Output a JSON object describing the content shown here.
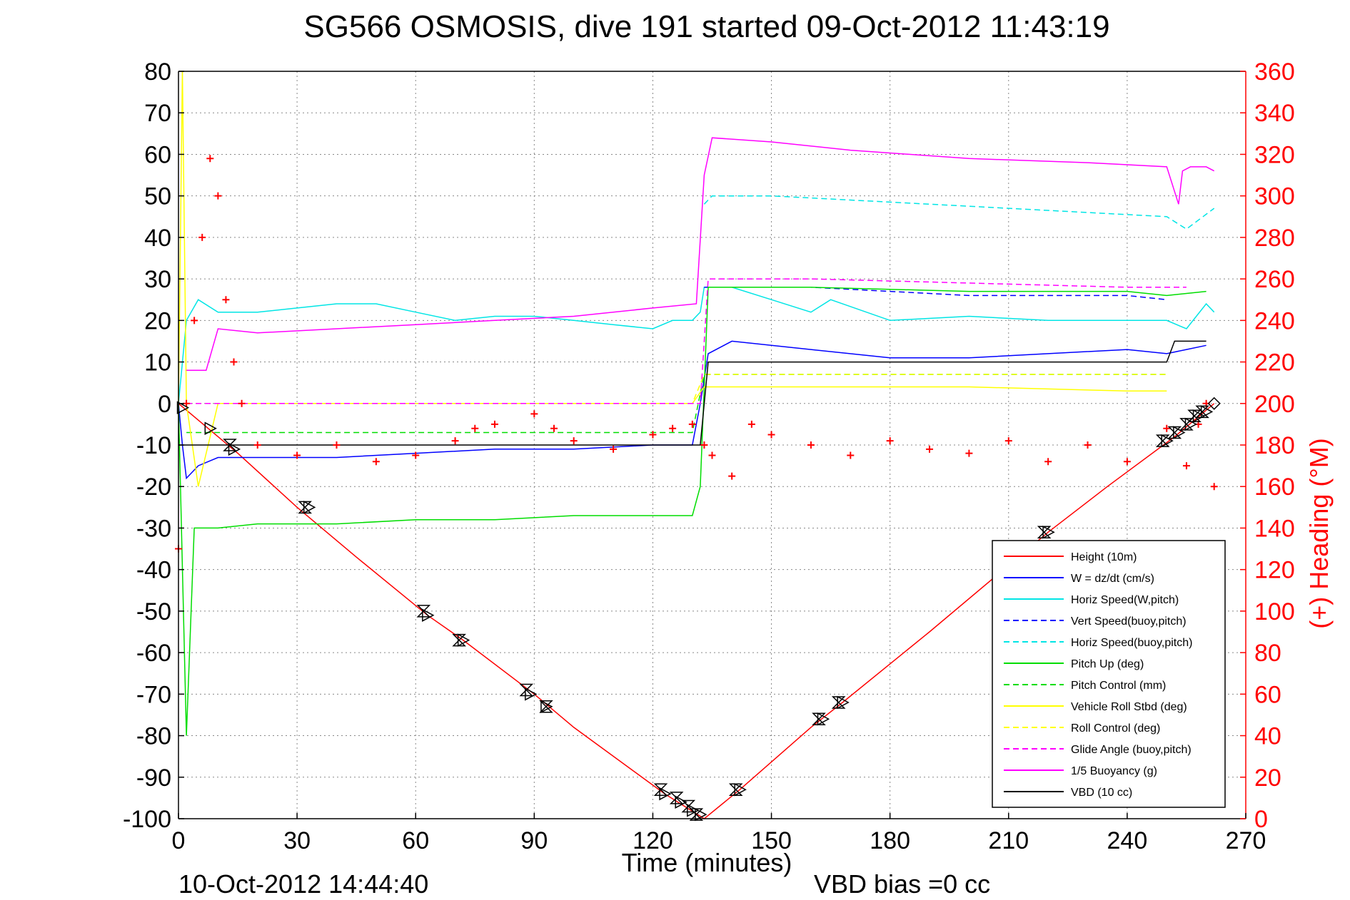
{
  "chart_data": {
    "type": "line",
    "title": "SG566 OSMOSIS, dive 191 started 09-Oct-2012 11:43:19",
    "xlabel": "Time (minutes)",
    "ylabel_right": "(+) Heading (°M)",
    "xlim": [
      0,
      270
    ],
    "ylim": [
      -100,
      80
    ],
    "ylim_right": [
      0,
      360
    ],
    "xticks": [
      0,
      30,
      60,
      90,
      120,
      150,
      180,
      210,
      240,
      270
    ],
    "yticks": [
      80,
      70,
      60,
      50,
      40,
      30,
      20,
      10,
      0,
      -10,
      -20,
      -30,
      -40,
      -50,
      -60,
      -70,
      -80,
      -90,
      -100
    ],
    "yticks_right": [
      360,
      340,
      320,
      300,
      280,
      260,
      240,
      220,
      200,
      180,
      160,
      140,
      120,
      100,
      80,
      60,
      40,
      20,
      0
    ],
    "grid": true,
    "legend_position": "bottom-right",
    "footer_left": "10-Oct-2012 14:44:40",
    "footer_right": "VBD bias =0 cc",
    "series": [
      {
        "name": "Height (10m)",
        "color": "#ff0000",
        "style": "solid",
        "x": [
          0,
          5,
          15,
          30,
          45,
          63,
          72,
          90,
          100,
          123,
          128,
          133,
          142,
          160,
          168,
          190,
          220,
          235,
          252,
          262
        ],
        "y": [
          0,
          -4,
          -12,
          -25,
          -37,
          -51,
          -57,
          -70,
          -78,
          -94,
          -97,
          -100,
          -93,
          -78,
          -72,
          -55,
          -31,
          -20,
          -8,
          0
        ]
      },
      {
        "name": "W = dz/dt (cm/s)",
        "color": "#0000ff",
        "style": "solid",
        "x": [
          0,
          1,
          2,
          5,
          10,
          20,
          40,
          60,
          80,
          100,
          120,
          130,
          132,
          134,
          140,
          160,
          180,
          200,
          220,
          240,
          250,
          255,
          260
        ],
        "y": [
          0,
          -10,
          -18,
          -15,
          -13,
          -13,
          -13,
          -12,
          -11,
          -11,
          -10,
          -10,
          0,
          12,
          15,
          13,
          11,
          11,
          12,
          13,
          12,
          13,
          14
        ]
      },
      {
        "name": "Horiz Speed(W,pitch)",
        "color": "#00e5e5",
        "style": "solid",
        "x": [
          0,
          2,
          5,
          10,
          20,
          30,
          40,
          50,
          60,
          70,
          80,
          90,
          100,
          110,
          120,
          125,
          130,
          132,
          133,
          140,
          150,
          160,
          165,
          180,
          200,
          220,
          240,
          250,
          255,
          260,
          262
        ],
        "y": [
          0,
          20,
          25,
          22,
          22,
          23,
          24,
          24,
          22,
          20,
          21,
          21,
          20,
          19,
          18,
          20,
          20,
          22,
          28,
          28,
          25,
          22,
          25,
          20,
          21,
          20,
          20,
          20,
          18,
          24,
          22
        ]
      },
      {
        "name": "Vert Speed(buoy,pitch)",
        "color": "#0000ff",
        "style": "dashed",
        "x": [
          133,
          140,
          160,
          180,
          200,
          220,
          240,
          250
        ],
        "y": [
          28,
          28,
          28,
          27,
          26,
          26,
          26,
          25
        ]
      },
      {
        "name": "Horiz Speed(buoy,pitch)",
        "color": "#00e5e5",
        "style": "dashed",
        "x": [
          133,
          135,
          150,
          170,
          190,
          210,
          230,
          250,
          255,
          262
        ],
        "y": [
          48,
          50,
          50,
          49,
          48,
          47,
          46,
          45,
          42,
          47
        ]
      },
      {
        "name": "Pitch Up (deg)",
        "color": "#00dd00",
        "style": "solid",
        "x": [
          0,
          2,
          4,
          10,
          20,
          40,
          60,
          80,
          100,
          120,
          130,
          132,
          134,
          140,
          160,
          200,
          240,
          250,
          260
        ],
        "y": [
          0,
          -80,
          -30,
          -30,
          -29,
          -29,
          -28,
          -28,
          -27,
          -27,
          -27,
          -20,
          28,
          28,
          28,
          27,
          27,
          26,
          27
        ]
      },
      {
        "name": "Pitch Control (mm)",
        "color": "#00dd00",
        "style": "dashed",
        "x": [
          2,
          10,
          30,
          60,
          90,
          120,
          130,
          133,
          135,
          170,
          200,
          240,
          250
        ],
        "y": [
          -7,
          -7,
          -7,
          -7,
          -7,
          -7,
          -7,
          7,
          7,
          7,
          7,
          7,
          7
        ]
      },
      {
        "name": "Vehicle Roll Stbd (deg)",
        "color": "#ffff00",
        "style": "solid",
        "x": [
          0,
          1,
          2,
          5,
          10,
          20,
          40,
          60,
          80,
          100,
          120,
          130,
          133,
          140,
          160,
          200,
          240,
          250
        ],
        "y": [
          0,
          80,
          0,
          -20,
          0,
          0,
          0,
          0,
          0,
          0,
          0,
          0,
          4,
          4,
          4,
          4,
          3,
          3
        ]
      },
      {
        "name": "Roll Control (deg)",
        "color": "#ffff00",
        "style": "dashed",
        "x": [
          2,
          10,
          30,
          60,
          90,
          120,
          130,
          133,
          140,
          160,
          200,
          240,
          250
        ],
        "y": [
          0,
          0,
          0,
          0,
          0,
          0,
          0,
          7,
          7,
          7,
          7,
          7,
          7
        ]
      },
      {
        "name": "Glide Angle (buoy,pitch)",
        "color": "#ff00ff",
        "style": "dashed",
        "x": [
          2,
          30,
          60,
          90,
          120,
          132,
          134,
          160,
          200,
          240,
          255
        ],
        "y": [
          0,
          0,
          0,
          0,
          0,
          0,
          30,
          30,
          29,
          28,
          28
        ]
      },
      {
        "name": "1/5 Buoyancy (g)",
        "color": "#ff00ff",
        "style": "solid",
        "x": [
          2,
          7,
          10,
          20,
          40,
          60,
          80,
          100,
          120,
          131,
          133,
          135,
          150,
          170,
          200,
          230,
          250,
          253,
          254,
          256,
          260,
          262
        ],
        "y": [
          8,
          8,
          18,
          17,
          18,
          19,
          20,
          21,
          23,
          24,
          55,
          64,
          63,
          61,
          59,
          58,
          57,
          48,
          56,
          57,
          57,
          56
        ]
      },
      {
        "name": "VBD (10 cc)",
        "color": "#000000",
        "style": "solid",
        "x": [
          0,
          2,
          5,
          30,
          60,
          90,
          120,
          130,
          132,
          134,
          150,
          200,
          250,
          252,
          260
        ],
        "y": [
          -10,
          -10,
          -10,
          -10,
          -10,
          -10,
          -10,
          -10,
          -10,
          10,
          10,
          10,
          10,
          15,
          15
        ]
      },
      {
        "name": "Heading",
        "color": "#ff0000",
        "style": "plus-markers",
        "axis": "right",
        "x": [
          0,
          2,
          4,
          6,
          8,
          10,
          12,
          14,
          16,
          20,
          30,
          40,
          50,
          60,
          70,
          75,
          80,
          90,
          95,
          100,
          110,
          120,
          125,
          130,
          133,
          135,
          140,
          145,
          150,
          160,
          170,
          180,
          190,
          200,
          210,
          220,
          230,
          240,
          250,
          255,
          258,
          260,
          262
        ],
        "y": [
          130,
          200,
          240,
          280,
          318,
          300,
          250,
          220,
          200,
          180,
          175,
          180,
          172,
          175,
          182,
          188,
          190,
          195,
          188,
          182,
          178,
          185,
          188,
          190,
          180,
          175,
          165,
          190,
          185,
          180,
          175,
          182,
          178,
          176,
          182,
          172,
          180,
          172,
          188,
          170,
          190,
          200,
          160
        ]
      }
    ],
    "markers": {
      "triangle_right": [
        [
          1,
          -1
        ],
        [
          8,
          -6
        ],
        [
          14,
          -11
        ],
        [
          33,
          -25
        ],
        [
          63,
          -51
        ],
        [
          72,
          -57
        ],
        [
          89,
          -70
        ],
        [
          93,
          -73
        ],
        [
          123,
          -94
        ],
        [
          127,
          -96
        ],
        [
          130,
          -98
        ],
        [
          132,
          -99
        ],
        [
          142,
          -93
        ],
        [
          163,
          -76
        ],
        [
          168,
          -72
        ],
        [
          220,
          -31
        ],
        [
          250,
          -9
        ],
        [
          253,
          -7
        ],
        [
          256,
          -5
        ],
        [
          258,
          -3
        ],
        [
          260,
          -2
        ]
      ],
      "hourglass": [
        [
          13,
          -10
        ],
        [
          32,
          -25
        ],
        [
          62,
          -50
        ],
        [
          71,
          -57
        ],
        [
          88,
          -69
        ],
        [
          93,
          -73
        ],
        [
          122,
          -93
        ],
        [
          126,
          -95
        ],
        [
          129,
          -97
        ],
        [
          131,
          -99
        ],
        [
          141,
          -93
        ],
        [
          162,
          -76
        ],
        [
          167,
          -72
        ],
        [
          219,
          -31
        ],
        [
          249,
          -9
        ],
        [
          252,
          -7
        ],
        [
          255,
          -5
        ],
        [
          257,
          -3
        ],
        [
          259,
          -2
        ]
      ],
      "diamond": [
        [
          262,
          0
        ]
      ]
    }
  }
}
